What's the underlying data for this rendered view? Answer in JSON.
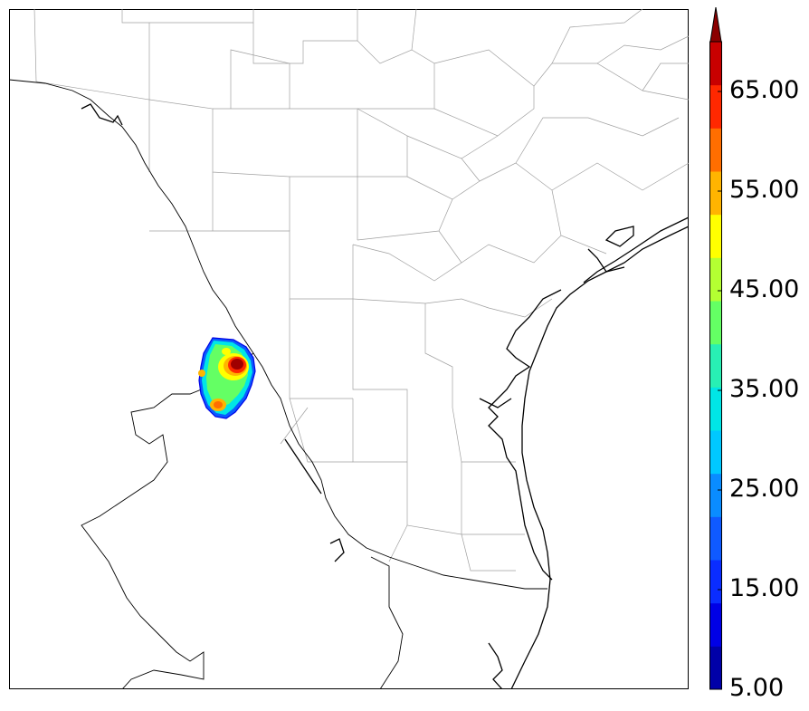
{
  "colorbar": {
    "tick_labels": [
      "5.00",
      "15.00",
      "25.00",
      "35.00",
      "45.00",
      "55.00",
      "65.00"
    ],
    "min": 5,
    "max": 70,
    "extend": "max",
    "colors": [
      "#0000a8",
      "#0000e6",
      "#0a2dff",
      "#0f5aff",
      "#0a8cff",
      "#00c8ff",
      "#00e6e6",
      "#28f0b4",
      "#64ff64",
      "#b4ff32",
      "#ffff00",
      "#ffb400",
      "#ff6e00",
      "#ff2800",
      "#c80000"
    ],
    "extend_color": "#8b0000"
  },
  "map": {
    "region": "South Texas / Gulf Coast",
    "colors": {
      "coast": "#000000",
      "county_lines": "#999999",
      "border": "#000000"
    },
    "precip_feature": {
      "location": "west-central",
      "peak_color": "#a00000"
    }
  }
}
